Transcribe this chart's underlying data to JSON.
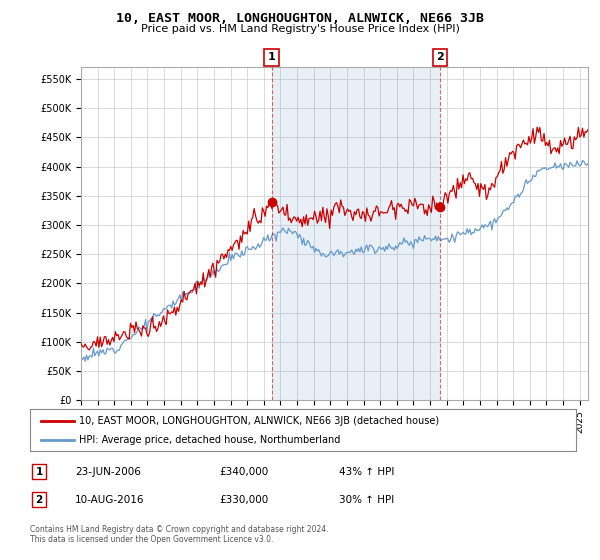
{
  "title": "10, EAST MOOR, LONGHOUGHTON, ALNWICK, NE66 3JB",
  "subtitle": "Price paid vs. HM Land Registry's House Price Index (HPI)",
  "ylabel_ticks": [
    "£0",
    "£50K",
    "£100K",
    "£150K",
    "£200K",
    "£250K",
    "£300K",
    "£350K",
    "£400K",
    "£450K",
    "£500K",
    "£550K"
  ],
  "ytick_values": [
    0,
    50000,
    100000,
    150000,
    200000,
    250000,
    300000,
    350000,
    400000,
    450000,
    500000,
    550000
  ],
  "ylim": [
    0,
    570000
  ],
  "xlim_start": 1995.0,
  "xlim_end": 2025.5,
  "sale1_x": 2006.47,
  "sale1_y": 340000,
  "sale2_x": 2016.6,
  "sale2_y": 330000,
  "legend_line1": "10, EAST MOOR, LONGHOUGHTON, ALNWICK, NE66 3JB (detached house)",
  "legend_line2": "HPI: Average price, detached house, Northumberland",
  "table_row1": [
    "1",
    "23-JUN-2006",
    "£340,000",
    "43% ↑ HPI"
  ],
  "table_row2": [
    "2",
    "10-AUG-2016",
    "£330,000",
    "30% ↑ HPI"
  ],
  "footnote": "Contains HM Land Registry data © Crown copyright and database right 2024.\nThis data is licensed under the Open Government Licence v3.0.",
  "red_color": "#cc0000",
  "blue_color": "#6699cc",
  "shade_color": "#ddeeff",
  "bg_color": "#ffffff",
  "grid_color": "#cccccc"
}
